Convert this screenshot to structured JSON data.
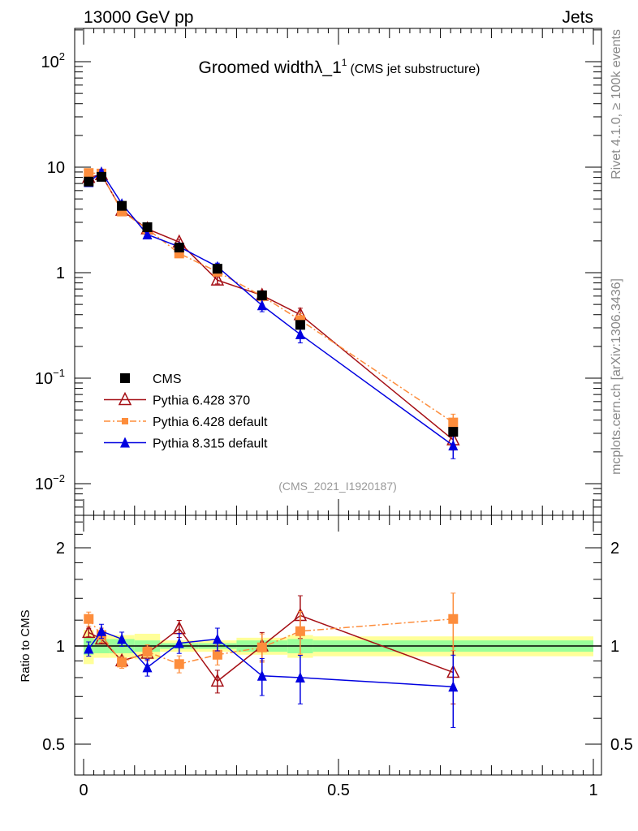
{
  "header": {
    "left": "13000 GeV pp",
    "right": "Jets"
  },
  "side_labels": {
    "top": "Rivet 4.1.0, ≥ 100k events",
    "bottom": "mcplots.cern.ch [arXiv:1306.3436]"
  },
  "chart_data": {
    "type": "line",
    "title": "Groomed widthλ_1",
    "title_sup": "1",
    "subtitle": "(CMS jet substructure)",
    "analysis_tag": "(CMS_2021_I1920187)",
    "xlabel": "",
    "ylabel_ratio": "Ratio to CMS",
    "xlim": [
      0,
      1
    ],
    "ylim": [
      0.006,
      200
    ],
    "yscale": "log",
    "ratio_ylim": [
      0.4,
      2.5
    ],
    "ratio_yscale": "log",
    "x_ticks": [
      "0",
      "0.5",
      "1"
    ],
    "x_tick_values": [
      0,
      0.5,
      1
    ],
    "y_ticks": [
      {
        "v": 0.01,
        "base": "10",
        "exp": "−2"
      },
      {
        "v": 0.1,
        "base": "10",
        "exp": "−1"
      },
      {
        "v": 1,
        "base": "1",
        "exp": ""
      },
      {
        "v": 10,
        "base": "10",
        "exp": ""
      },
      {
        "v": 100,
        "base": "10",
        "exp": "2"
      }
    ],
    "ratio_ticks": [
      {
        "v": 0.5,
        "label": "0.5"
      },
      {
        "v": 1,
        "label": "1"
      },
      {
        "v": 2,
        "label": "2"
      }
    ],
    "bin_edges": [
      0,
      0.02,
      0.05,
      0.1,
      0.15,
      0.225,
      0.3,
      0.4,
      0.45,
      1.0
    ],
    "x": [
      0.01,
      0.035,
      0.075,
      0.125,
      0.1875,
      0.2625,
      0.35,
      0.425,
      0.725
    ],
    "data_band_green": [
      0.06,
      0.05,
      0.05,
      0.04,
      0.02,
      0.02,
      0.04,
      0.05,
      0.04
    ],
    "data_band_yellow": [
      0.12,
      0.08,
      0.08,
      0.09,
      0.04,
      0.04,
      0.06,
      0.08,
      0.07
    ],
    "legend_position": "bottom-left",
    "series": [
      {
        "name": "CMS",
        "color": "#000000",
        "marker": "square",
        "line": "none",
        "values": [
          7.3,
          8.1,
          4.3,
          2.7,
          1.73,
          1.09,
          0.61,
          0.32,
          0.031
        ],
        "ratio": [
          1,
          1,
          1,
          1,
          1,
          1,
          1,
          1,
          1
        ],
        "rel_err": [
          0.03,
          0.03,
          0.03,
          0.03,
          0.02,
          0.02,
          0.04,
          0.05,
          0.04
        ]
      },
      {
        "name": "Pythia 6.428 370",
        "color": "#a50f15",
        "marker": "open-triangle",
        "line": "solid",
        "values": [
          8.0,
          8.5,
          3.9,
          2.6,
          1.95,
          0.85,
          0.61,
          0.4,
          0.026
        ],
        "ratio": [
          1.1,
          1.05,
          0.9,
          0.95,
          1.13,
          0.78,
          1.0,
          1.24,
          0.83
        ],
        "rel_err": [
          0.03,
          0.03,
          0.03,
          0.05,
          0.06,
          0.08,
          0.1,
          0.15,
          0.2
        ]
      },
      {
        "name": "Pythia 6.428 default",
        "color": "#fd8d3c",
        "marker": "square",
        "line": "dashdot",
        "values": [
          8.8,
          8.7,
          3.8,
          2.6,
          1.52,
          1.02,
          0.6,
          0.355,
          0.038
        ],
        "ratio": [
          1.21,
          1.08,
          0.89,
          0.96,
          0.88,
          0.94,
          0.99,
          1.11,
          1.21
        ],
        "rel_err": [
          0.05,
          0.05,
          0.04,
          0.05,
          0.06,
          0.07,
          0.1,
          0.15,
          0.2
        ]
      },
      {
        "name": "Pythia 8.315 default",
        "color": "#0000e0",
        "marker": "triangle",
        "line": "solid",
        "values": [
          7.2,
          9.0,
          4.5,
          2.3,
          1.76,
          1.14,
          0.49,
          0.26,
          0.023
        ],
        "ratio": [
          0.98,
          1.11,
          1.05,
          0.86,
          1.02,
          1.05,
          0.81,
          0.8,
          0.75
        ],
        "rel_err": [
          0.05,
          0.05,
          0.05,
          0.06,
          0.07,
          0.08,
          0.13,
          0.17,
          0.25
        ]
      }
    ]
  }
}
